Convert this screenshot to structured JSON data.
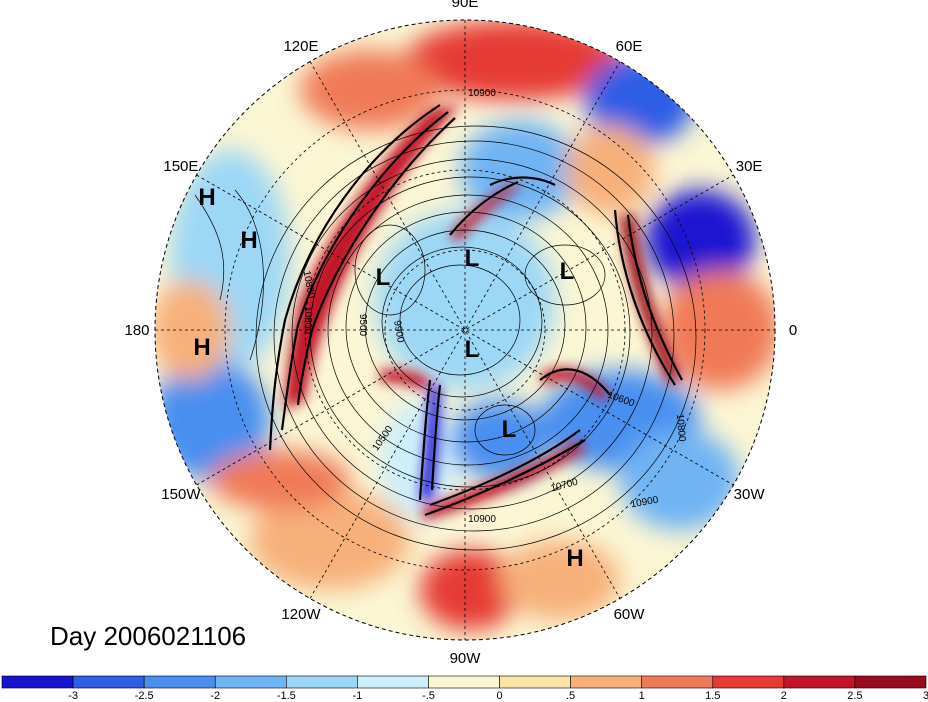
{
  "title": "Day 2006021106",
  "longitude_labels": [
    {
      "text": "90E",
      "angle": 90
    },
    {
      "text": "60E",
      "angle": 60
    },
    {
      "text": "120E",
      "angle": 120
    },
    {
      "text": "30E",
      "angle": 30
    },
    {
      "text": "150E",
      "angle": 150
    },
    {
      "text": "0",
      "angle": 0
    },
    {
      "text": "180",
      "angle": 180
    },
    {
      "text": "30W",
      "angle": -30
    },
    {
      "text": "150W",
      "angle": -150
    },
    {
      "text": "60W",
      "angle": -60
    },
    {
      "text": "120W",
      "angle": -120
    },
    {
      "text": "90W",
      "angle": -90
    }
  ],
  "pressure_centers": [
    {
      "label": "H",
      "name": "high-1"
    },
    {
      "label": "H",
      "name": "high-2"
    },
    {
      "label": "H",
      "name": "high-3"
    },
    {
      "label": "H",
      "name": "high-4"
    },
    {
      "label": "L",
      "name": "low-1"
    },
    {
      "label": "L",
      "name": "low-2"
    },
    {
      "label": "L",
      "name": "low-3"
    },
    {
      "label": "L",
      "name": "low-4"
    },
    {
      "label": "L",
      "name": "low-5"
    }
  ],
  "contour_labels": [
    "10900",
    "10800",
    "10800",
    "10700",
    "10500",
    "9500",
    "9900",
    "10900",
    "10800",
    "10600",
    "10900"
  ],
  "colorbar": {
    "colors": [
      "#1a12d1",
      "#2e5de6",
      "#4a8ff0",
      "#6fb4f4",
      "#9cd7f6",
      "#cdeefb",
      "#fbf6d4",
      "#fce3a6",
      "#f7b07a",
      "#f07a58",
      "#e63b35",
      "#c2152a",
      "#9a0a1e"
    ],
    "tick_labels": [
      "-3",
      "-2.5",
      "-2",
      "-1.5",
      "-1",
      "-.5",
      "0",
      ".5",
      "1",
      "1.5",
      "2",
      "2.5",
      "3"
    ]
  }
}
